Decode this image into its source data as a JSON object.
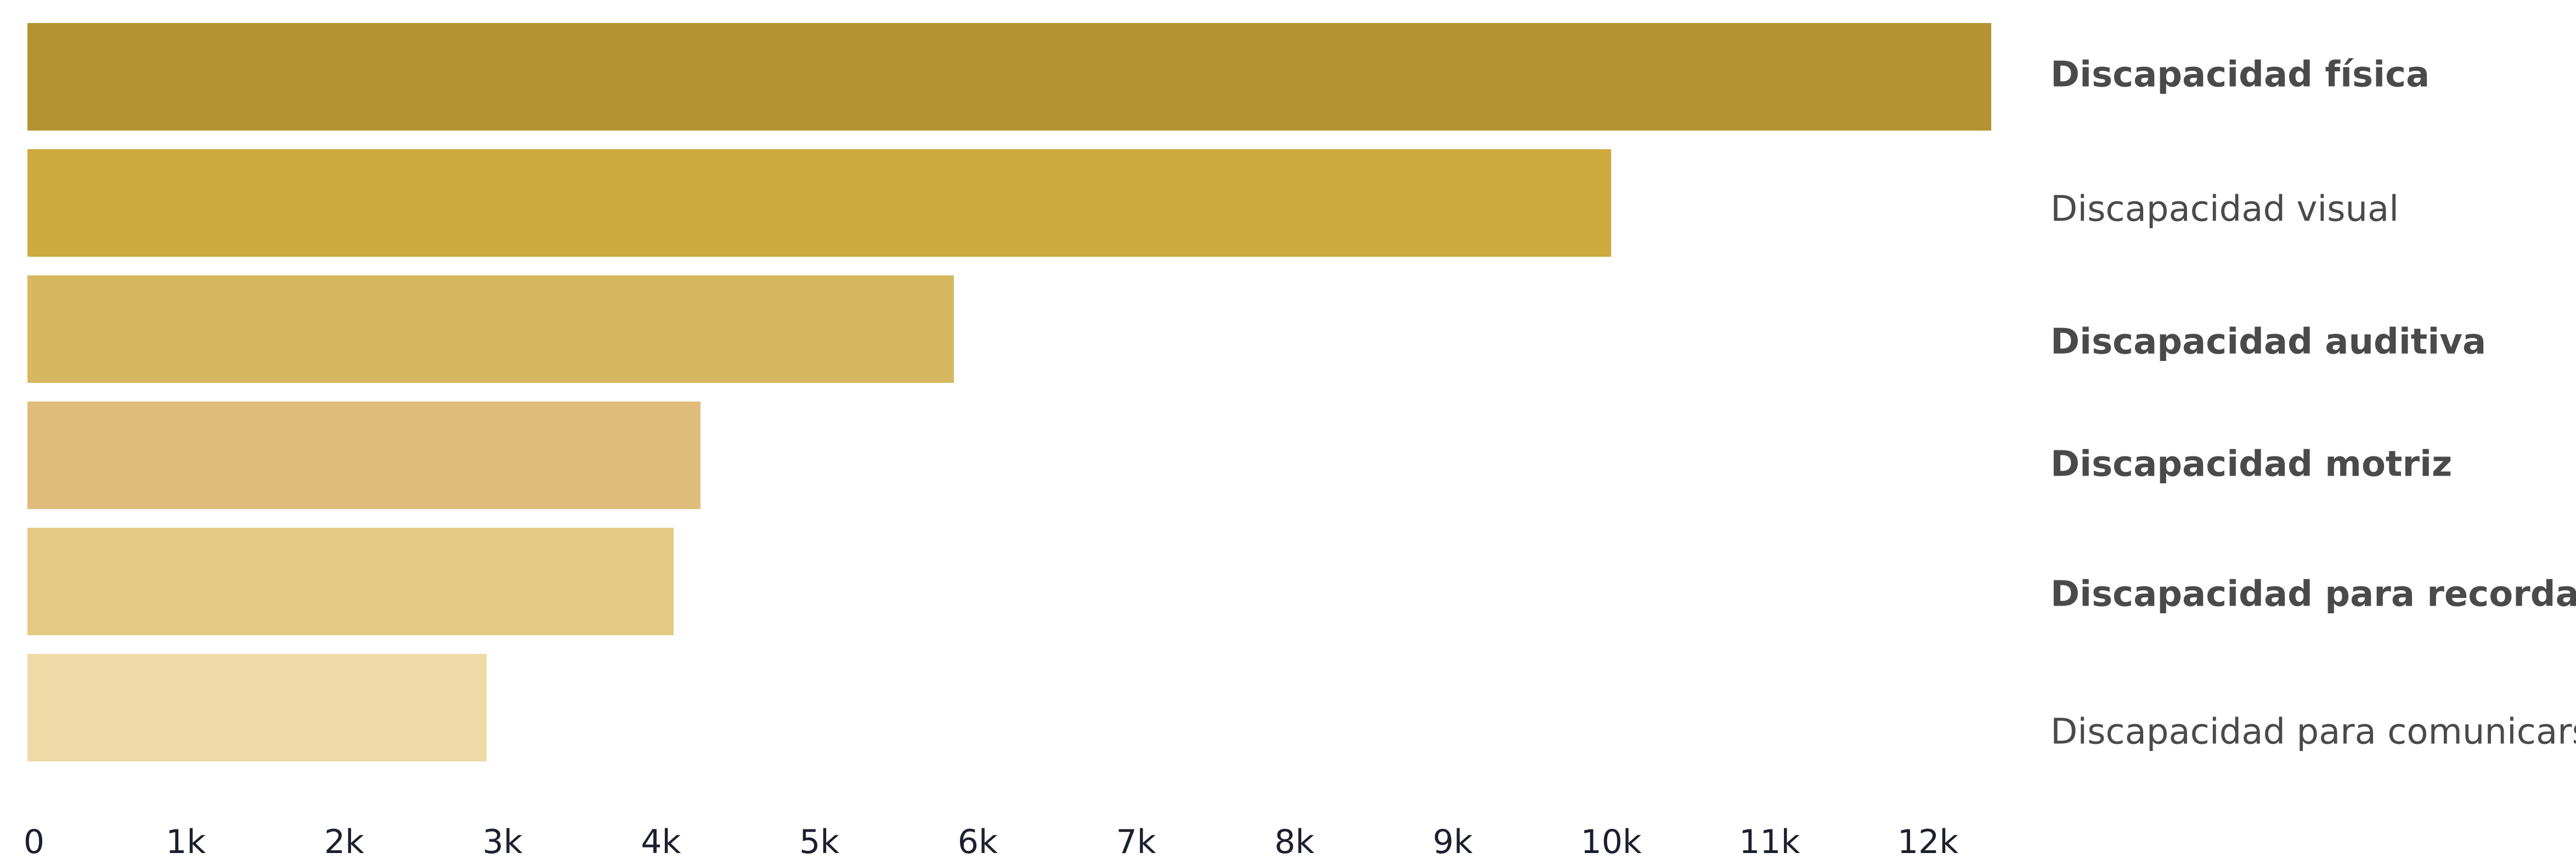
{
  "chart_data": {
    "type": "bar",
    "orientation": "horizontal",
    "categories": [
      "Discapacidad física",
      "Discapacidad visual",
      "Discapacidad auditiva",
      "Discapacidad motriz",
      "Discapacidad para recordar",
      "Discapacidad para comunicarse"
    ],
    "values": [
      12400,
      10000,
      5850,
      4250,
      4080,
      2900
    ],
    "label_bold": [
      true,
      false,
      true,
      true,
      true,
      false
    ],
    "colors": [
      "#b39330",
      "#cfaa3e",
      "#d7b860",
      "#dfbc7a",
      "#e4c984",
      "#efd9a6"
    ],
    "xlim": [
      0,
      12400
    ],
    "xticks": [
      0,
      1000,
      2000,
      3000,
      4000,
      5000,
      6000,
      7000,
      8000,
      9000,
      10000,
      11000,
      12000
    ],
    "xtick_labels": [
      "0",
      "1k",
      "2k",
      "3k",
      "4k",
      "5k",
      "6k",
      "7k",
      "8k",
      "9k",
      "10k",
      "11k",
      "12k"
    ],
    "legend": "none",
    "grid": false
  }
}
